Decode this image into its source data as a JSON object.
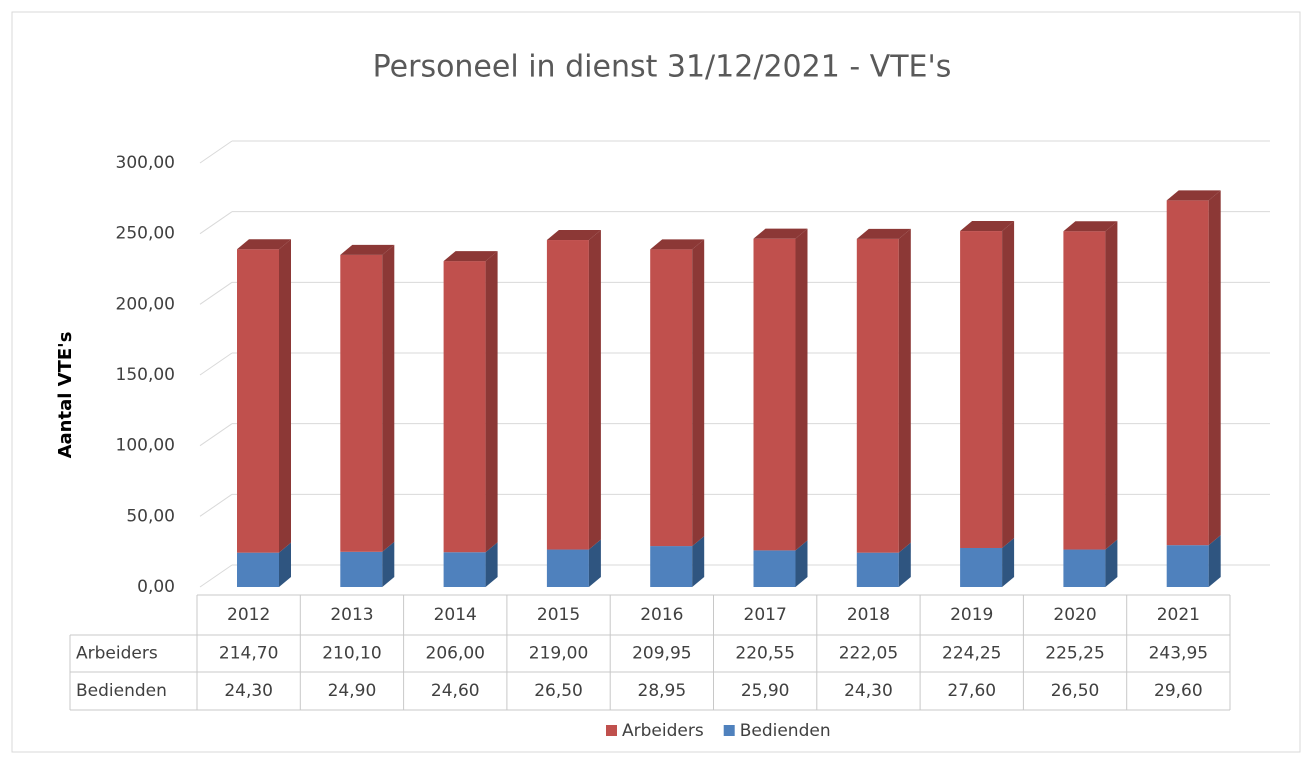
{
  "chart_data": {
    "type": "bar3d_stacked",
    "title": "Personeel in dienst 31/12/2021 - VTE's",
    "y_axis_label": "Aantal VTE's",
    "categories": [
      "2012",
      "2013",
      "2014",
      "2015",
      "2016",
      "2017",
      "2018",
      "2019",
      "2020",
      "2021"
    ],
    "series": [
      {
        "name": "Arbeiders",
        "color": "#c0504d",
        "side_color": "#8c3836",
        "values": [
          214.7,
          210.1,
          206.0,
          219.0,
          209.95,
          220.55,
          222.05,
          224.25,
          225.25,
          243.95
        ],
        "value_labels": [
          "214,70",
          "210,10",
          "206,00",
          "219,00",
          "209,95",
          "220,55",
          "222,05",
          "224,25",
          "225,25",
          "243,95"
        ]
      },
      {
        "name": "Bedienden",
        "color": "#4f81bd",
        "side_color": "#2f5580",
        "values": [
          24.3,
          24.9,
          24.6,
          26.5,
          28.95,
          25.9,
          24.3,
          27.6,
          26.5,
          29.6
        ],
        "value_labels": [
          "24,30",
          "24,90",
          "24,60",
          "26,50",
          "28,95",
          "25,90",
          "24,30",
          "27,60",
          "26,50",
          "29,60"
        ]
      }
    ],
    "stack_order": [
      "Bedienden",
      "Arbeiders"
    ],
    "ylim": [
      0,
      300
    ],
    "yticks": [
      {
        "value": 0,
        "label": "0,00"
      },
      {
        "value": 50,
        "label": "50,00"
      },
      {
        "value": 100,
        "label": "100,00"
      },
      {
        "value": 150,
        "label": "150,00"
      },
      {
        "value": 200,
        "label": "200,00"
      },
      {
        "value": 250,
        "label": "250,00"
      },
      {
        "value": 300,
        "label": "300,00"
      }
    ],
    "grid": true,
    "legend": "bottom"
  }
}
